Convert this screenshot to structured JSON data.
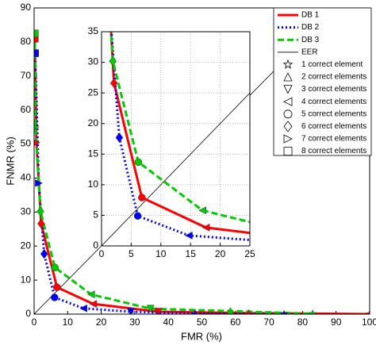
{
  "chart_data": {
    "type": "line",
    "xlabel": "FMR (%)",
    "ylabel": "FNMR (%)",
    "xlim": [
      0,
      100
    ],
    "ylim": [
      0,
      90
    ],
    "xticks": [
      0,
      10,
      20,
      30,
      40,
      50,
      60,
      70,
      80,
      90,
      100
    ],
    "yticks": [
      0,
      10,
      20,
      30,
      40,
      50,
      60,
      70,
      80,
      90
    ],
    "inset": {
      "xlim": [
        0,
        25
      ],
      "ylim": [
        0,
        35
      ],
      "xticks": [
        0,
        5,
        10,
        15,
        20,
        25
      ],
      "yticks": [
        0,
        5,
        10,
        15,
        20,
        25,
        30,
        35
      ],
      "grid": true
    },
    "series": [
      {
        "name": "DB 1",
        "color": "#ff0000",
        "style": "solid",
        "x": [
          0.2,
          0.7,
          2.1,
          6.8,
          17.6,
          37,
          64,
          100
        ],
        "values": [
          81,
          50.4,
          26.6,
          7.9,
          3,
          0.7,
          0.3,
          0
        ]
      },
      {
        "name": "DB 2",
        "color": "#0000ff",
        "style": "dotted",
        "x": [
          0.3,
          1.4,
          3.0,
          6.1,
          14.7,
          28.8,
          48,
          74.5
        ],
        "values": [
          76.7,
          38.5,
          17.7,
          4.9,
          1.7,
          0.7,
          0.2,
          0
        ]
      },
      {
        "name": "DB 3",
        "color": "#00cc00",
        "style": "dashed",
        "x": [
          0.2,
          0.4,
          1.9,
          6.2,
          17,
          34.7,
          58.5,
          83
        ],
        "values": [
          82.5,
          55,
          30.2,
          13.7,
          5.8,
          1.6,
          0.9,
          0.1
        ]
      }
    ],
    "eer": {
      "name": "EER",
      "color": "#000000"
    },
    "marker_labels": [
      "1 correct element",
      "2 correct elements",
      "3 correct elements",
      "4 correct elements",
      "5 correct elements",
      "6 correct elements",
      "7 correct elements",
      "8 correct elements"
    ]
  }
}
